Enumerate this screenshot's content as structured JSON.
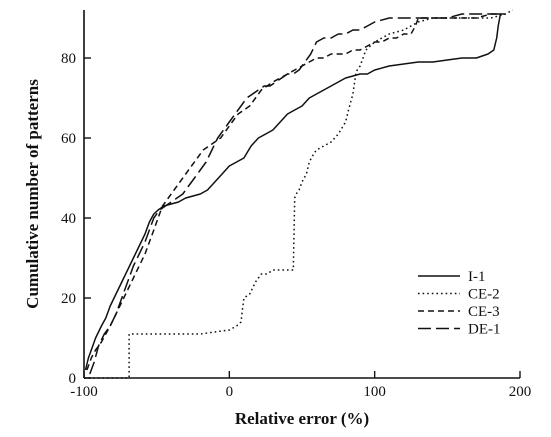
{
  "chart_data": {
    "type": "line",
    "title": "",
    "xlabel": "Relative error (%)",
    "ylabel": "Cumulative number of patterns",
    "xlim": [
      -100,
      200
    ],
    "ylim": [
      0,
      92
    ],
    "xticks": [
      -100,
      0,
      100,
      200
    ],
    "yticks": [
      0,
      20,
      40,
      60,
      80
    ],
    "xtick_labels": [
      "-100",
      "0",
      "100",
      "200"
    ],
    "ytick_labels": [
      "0",
      "20",
      "40",
      "60",
      "80"
    ],
    "grid": false,
    "legend_position": "bottom-right",
    "series": [
      {
        "name": "I-1",
        "style": "solid",
        "x": [
          -99,
          -97,
          -95,
          -92,
          -88,
          -85,
          -82,
          -78,
          -74,
          -70,
          -66,
          -62,
          -58,
          -55,
          -52,
          -49,
          -45,
          -40,
          -35,
          -30,
          -25,
          -20,
          -15,
          -10,
          -5,
          0,
          5,
          10,
          15,
          20,
          25,
          30,
          35,
          40,
          45,
          50,
          55,
          60,
          65,
          70,
          75,
          80,
          85,
          90,
          95,
          100,
          110,
          120,
          130,
          140,
          150,
          160,
          170,
          178,
          182,
          184,
          185,
          186,
          186.5,
          187
        ],
        "y": [
          2,
          5,
          7,
          10,
          13,
          15,
          18,
          21,
          24,
          27,
          30,
          33,
          36,
          39,
          41,
          42,
          43,
          43.5,
          44,
          45,
          45.5,
          46,
          47,
          49,
          51,
          53,
          54,
          55,
          58,
          60,
          61,
          62,
          64,
          66,
          67,
          68,
          70,
          71,
          72,
          73,
          74,
          75,
          75.5,
          76,
          76,
          77,
          78,
          78.5,
          79,
          79,
          79.5,
          80,
          80,
          81,
          82,
          85,
          88,
          90,
          91,
          91
        ]
      },
      {
        "name": "CE-2",
        "style": "dotted",
        "x": [
          -100,
          -98,
          -96,
          -94,
          -92,
          -90,
          -89,
          -88,
          -87,
          -70,
          -69,
          -69,
          -68,
          -60,
          -40,
          -20,
          0,
          5,
          8,
          9,
          10,
          14,
          18,
          22,
          26,
          30,
          38,
          44,
          45,
          46,
          48,
          50,
          53,
          55,
          58,
          60,
          65,
          70,
          75,
          80,
          82,
          85,
          87,
          88,
          90,
          92,
          94,
          100,
          110,
          120,
          130,
          140,
          150,
          160,
          170,
          180,
          190,
          195
        ],
        "y": [
          0,
          0,
          0,
          0,
          0,
          0,
          0,
          0,
          0,
          0,
          0,
          11,
          11,
          11,
          11,
          11,
          12,
          13,
          14,
          17,
          20,
          21,
          24,
          26,
          26,
          27,
          27,
          27,
          45,
          46,
          47,
          49,
          51,
          54,
          56,
          57,
          58,
          59,
          61,
          64,
          67,
          71,
          76,
          77,
          78,
          80,
          82,
          84,
          86,
          87,
          89,
          90,
          90,
          90,
          90,
          90,
          91,
          92
        ]
      },
      {
        "name": "CE-3",
        "style": "dashed",
        "x": [
          -98,
          -95,
          -92,
          -88,
          -85,
          -82,
          -78,
          -74,
          -70,
          -66,
          -62,
          -58,
          -55,
          -52,
          -49,
          -46,
          -42,
          -38,
          -34,
          -30,
          -26,
          -22,
          -18,
          -14,
          -10,
          -6,
          -2,
          2,
          6,
          10,
          14,
          18,
          22,
          26,
          30,
          35,
          40,
          45,
          50,
          55,
          60,
          65,
          70,
          75,
          80,
          85,
          90,
          95,
          100,
          105,
          110,
          115,
          120,
          125,
          128,
          130,
          140,
          150,
          160,
          170,
          180,
          190
        ],
        "y": [
          2,
          5,
          7,
          9,
          11,
          13,
          16,
          19,
          22,
          25,
          28,
          31,
          34,
          37,
          40,
          43,
          45,
          47,
          49,
          51,
          53,
          55,
          57,
          58,
          59,
          60,
          62,
          64,
          66,
          67,
          68,
          70,
          72,
          73,
          74,
          75,
          76,
          77,
          78,
          79,
          80,
          80,
          81,
          81,
          81,
          82,
          82,
          83,
          84,
          84,
          85,
          85,
          86,
          86,
          88,
          90,
          90,
          90,
          90,
          90,
          91,
          91
        ]
      },
      {
        "name": "DE-1",
        "style": "longdash",
        "x": [
          -96,
          -93,
          -90,
          -86,
          -82,
          -78,
          -74,
          -70,
          -66,
          -62,
          -58,
          -55,
          -52,
          -48,
          -44,
          -40,
          -36,
          -32,
          -28,
          -24,
          -20,
          -16,
          -12,
          -8,
          -4,
          0,
          4,
          8,
          12,
          16,
          20,
          24,
          28,
          32,
          36,
          40,
          44,
          48,
          52,
          56,
          60,
          65,
          70,
          75,
          80,
          85,
          90,
          95,
          100,
          110,
          120,
          130,
          140,
          150,
          160,
          170,
          180,
          190
        ],
        "y": [
          1,
          4,
          8,
          11,
          13,
          16,
          20,
          24,
          28,
          31,
          34,
          37,
          40,
          42,
          43,
          44,
          45,
          46,
          48,
          50,
          52,
          54,
          57,
          60,
          62,
          64,
          66,
          68,
          70,
          71,
          72,
          73,
          73,
          74,
          75,
          76,
          76,
          77,
          79,
          81,
          84,
          85,
          85,
          86,
          86,
          87,
          87,
          88,
          89,
          90,
          90,
          90,
          90,
          90,
          91,
          91,
          91,
          91
        ]
      }
    ]
  }
}
